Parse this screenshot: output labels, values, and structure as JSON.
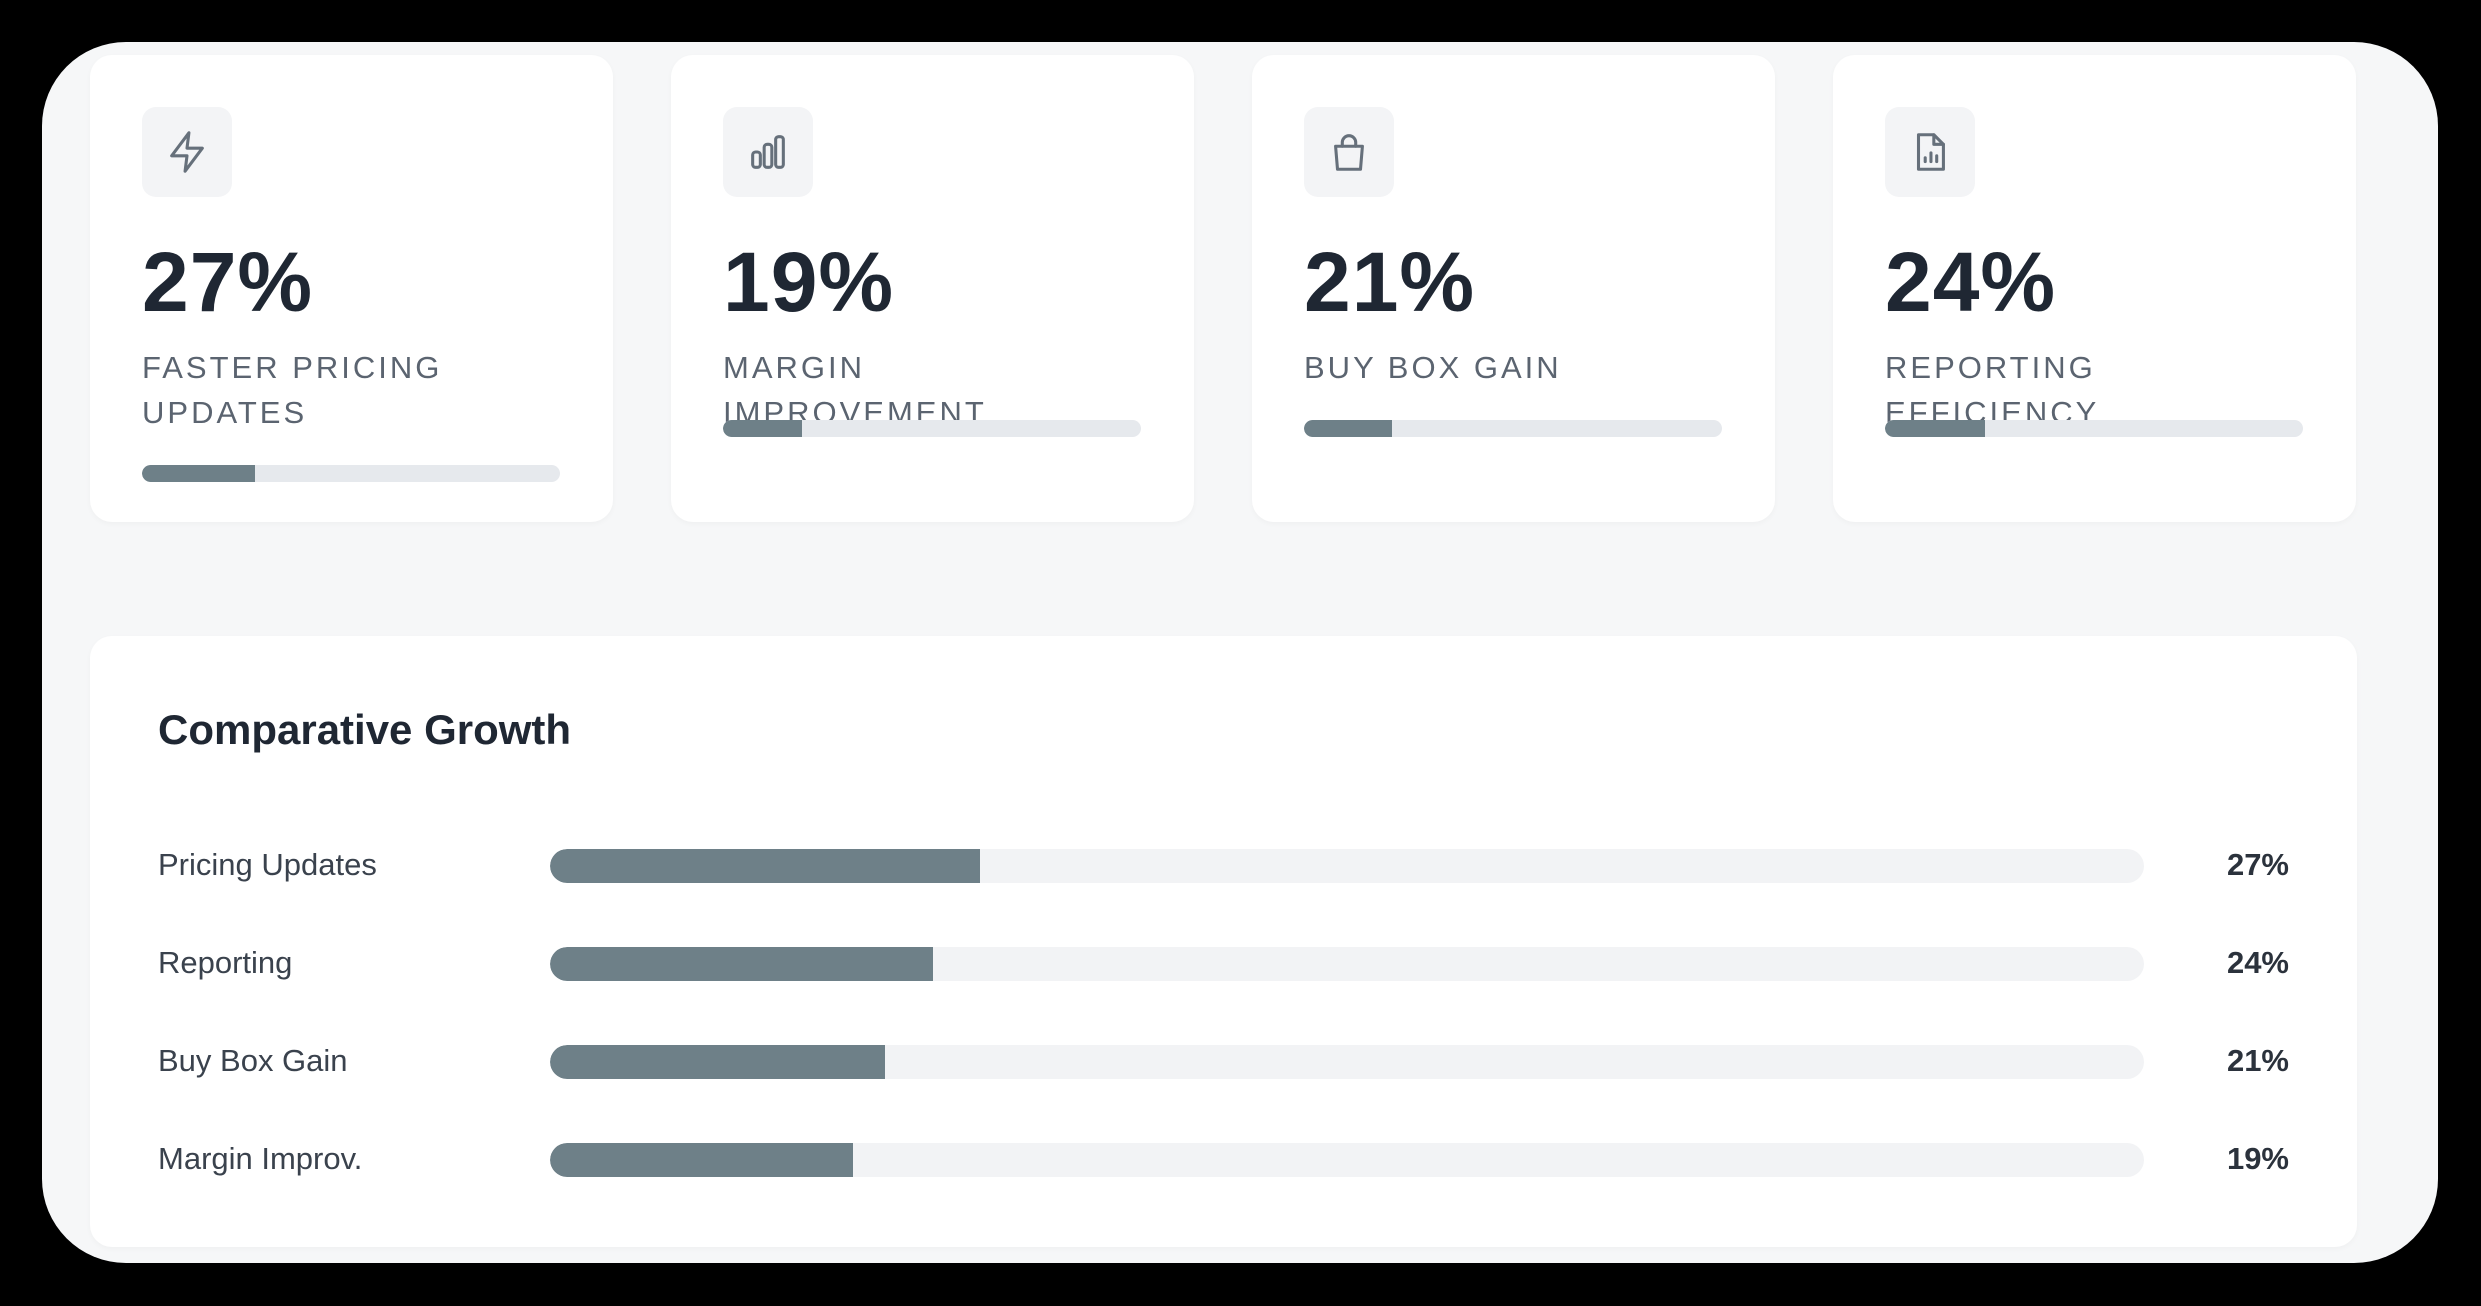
{
  "stats": [
    {
      "icon": "lightning-icon",
      "value": "27%",
      "label": "FASTER PRICING UPDATES",
      "progress": 0.27
    },
    {
      "icon": "bar-chart-icon",
      "value": "19%",
      "label": "MARGIN IMPROVEMENT",
      "progress": 0.19
    },
    {
      "icon": "shopping-bag-icon",
      "value": "21%",
      "label": "BUY BOX GAIN",
      "progress": 0.21
    },
    {
      "icon": "report-document-icon",
      "value": "24%",
      "label": "REPORTING EFFICIENCY",
      "progress": 0.24
    }
  ],
  "colors": {
    "accent": "#6e8088",
    "track": "#e6e9ed",
    "text_dark": "#1f2733",
    "text_muted": "#5b6470",
    "page_bg": "#f6f7f8"
  },
  "comparison": {
    "title": "Comparative Growth",
    "chart_data": {
      "type": "bar",
      "orientation": "horizontal",
      "title": "Comparative Growth",
      "categories": [
        "Pricing Updates",
        "Reporting",
        "Buy Box Gain",
        "Margin Improv."
      ],
      "values": [
        27,
        24,
        21,
        19
      ],
      "value_labels": [
        "27%",
        "24%",
        "21%",
        "19%"
      ],
      "xlim": [
        0,
        100
      ],
      "unit": "%",
      "grid": false
    }
  }
}
